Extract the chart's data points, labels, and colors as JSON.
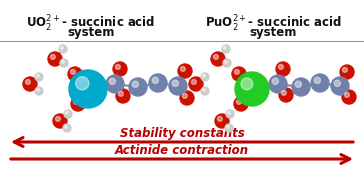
{
  "title_left_line1": "UO$_2^{2+}$- succinic acid",
  "title_left_line2": "system",
  "title_right_line1": "PuO$_2^{2+}$- succinic acid",
  "title_right_line2": "system",
  "arrow1_label": "Stability constants",
  "arrow2_label": "Actinide contraction",
  "arrow_color": "#bb0000",
  "text_color": "#bb0000",
  "title_color": "#111111",
  "bg_color": "#ffffff",
  "divider_color": "#999999",
  "figsize": [
    3.64,
    1.89
  ],
  "dpi": 100,
  "left_center_atom_color": "#00aacc",
  "right_center_atom_color": "#22cc22",
  "molecule_atom_color": "#7080aa",
  "oxygen_color": "#cc1100",
  "hydrogen_color": "#cccccc",
  "bond_color": "#888888"
}
